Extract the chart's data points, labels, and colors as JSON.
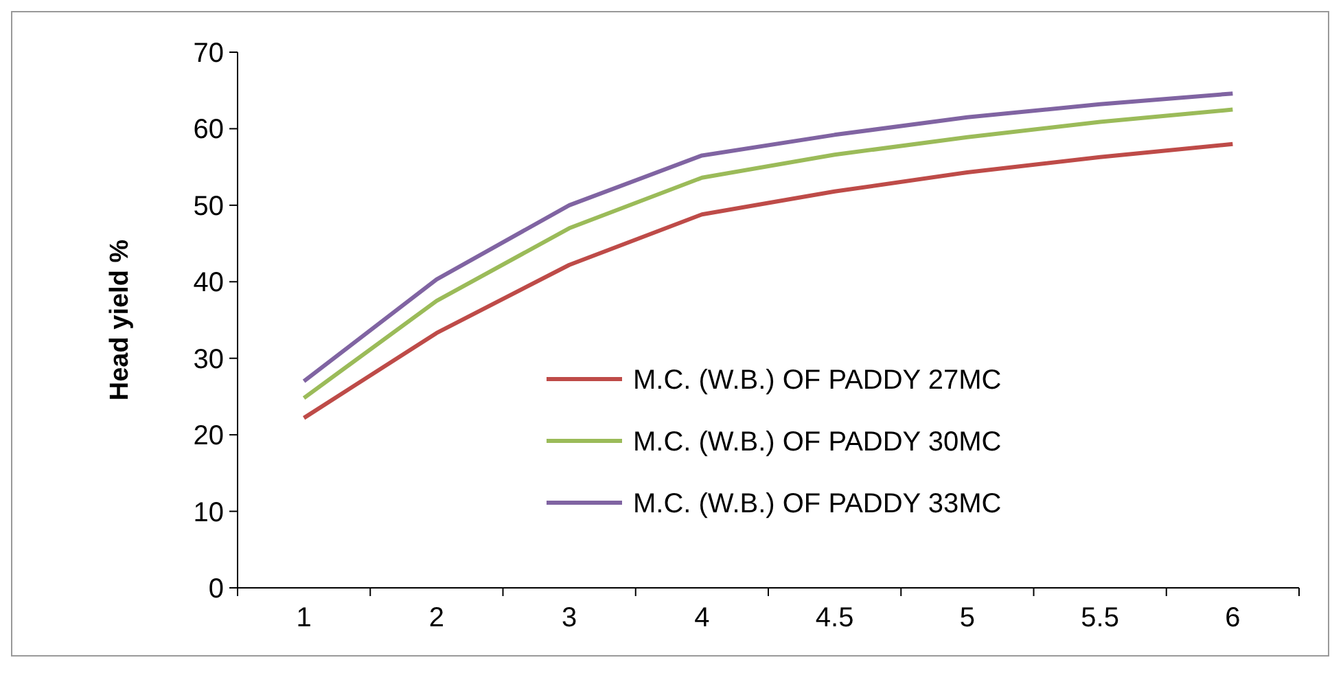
{
  "chart_data": {
    "type": "line",
    "ylabel": "Head yield %",
    "categories": [
      "1",
      "2",
      "3",
      "4",
      "4.5",
      "5",
      "5.5",
      "6"
    ],
    "ylim": [
      0,
      70
    ],
    "yticks": [
      0,
      10,
      20,
      30,
      40,
      50,
      60,
      70
    ],
    "grid": false,
    "legend": "right",
    "marker": "none",
    "series": [
      {
        "name": "M.C. (W.B.) OF PADDY 27MC",
        "color": "#be4b48",
        "values": [
          22.2,
          33.3,
          42.2,
          48.8,
          51.8,
          54.3,
          56.3,
          58.0
        ]
      },
      {
        "name": "M.C. (W.B.) OF PADDY 30MC",
        "color": "#9bbb59",
        "values": [
          24.8,
          37.5,
          47.0,
          53.6,
          56.6,
          58.9,
          60.9,
          62.5
        ]
      },
      {
        "name": "M.C. (W.B.) OF PADDY 33MC",
        "color": "#8064a2",
        "values": [
          27.0,
          40.3,
          50.0,
          56.5,
          59.2,
          61.5,
          63.2,
          64.6
        ]
      }
    ]
  }
}
